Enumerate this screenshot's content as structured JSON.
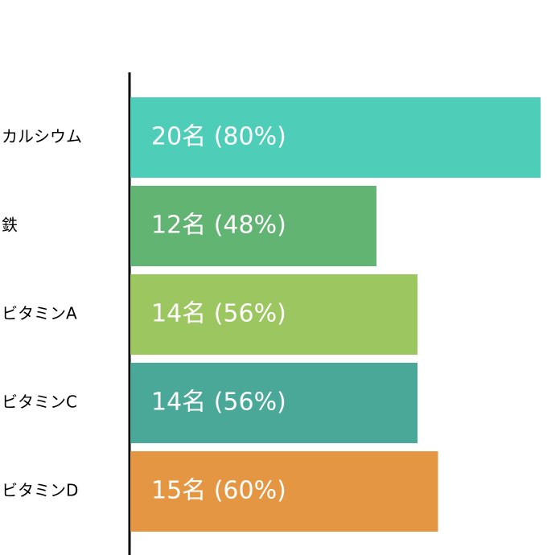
{
  "chart_data": {
    "type": "bar",
    "orientation": "horizontal",
    "categories": [
      "カルシウム",
      "鉄",
      "ビタミンA",
      "ビタミンC",
      "ビタミンD"
    ],
    "values": [
      20,
      12,
      14,
      14,
      15
    ],
    "value_labels": [
      "20名 (80%)",
      "12名 (48%)",
      "14名 (56%)",
      "14名 (56%)",
      "15名 (60%)"
    ],
    "colors": [
      "#4ecdb8",
      "#62b473",
      "#9cc660",
      "#4aa899",
      "#e59642"
    ],
    "xlim": [
      0,
      20
    ]
  }
}
